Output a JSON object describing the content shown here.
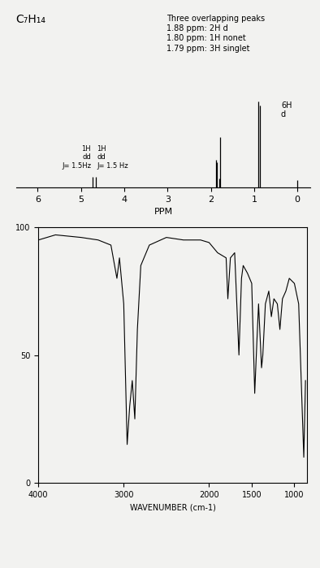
{
  "chart_data": [
    {
      "type": "stem",
      "title": "C₇H₁₄",
      "xlabel": "PPM",
      "x": [
        4.74,
        4.66,
        1.88,
        1.86,
        1.8,
        1.79,
        0.9,
        0.87,
        0.0
      ],
      "values": [
        12,
        12,
        30,
        28,
        10,
        55,
        95,
        90,
        8
      ],
      "color": "#000000",
      "xlim": [
        6.5,
        -0.3
      ],
      "xticks": [
        6,
        5,
        4,
        3,
        2,
        1,
        0
      ],
      "ylim": [
        0,
        100
      ],
      "tick_labels": "x",
      "annotations": [
        "Three overlapping peaks\n1.88 ppm: 2H d\n1.80 ppm: 1H nonet\n1.79 ppm: 3H singlet",
        "6H\nd",
        "1H\ndd\nJ= 1.5Hz",
        "1H\ndd\nJ= 1.5 Hz"
      ]
    },
    {
      "type": "line",
      "xlabel": "WAVENUMBER (cm-1)",
      "x": [
        4000,
        3800,
        3500,
        3300,
        3150,
        3080,
        3050,
        3000,
        2960,
        2930,
        2900,
        2870,
        2840,
        2800,
        2700,
        2500,
        2300,
        2100,
        2000,
        1900,
        1800,
        1780,
        1750,
        1700,
        1650,
        1620,
        1600,
        1550,
        1500,
        1465,
        1440,
        1420,
        1385,
        1370,
        1340,
        1300,
        1270,
        1240,
        1200,
        1170,
        1140,
        1100,
        1060,
        1000,
        950,
        890,
        870
      ],
      "values": [
        95,
        97,
        96,
        95,
        93,
        80,
        88,
        70,
        15,
        30,
        40,
        25,
        60,
        85,
        93,
        96,
        95,
        95,
        94,
        90,
        88,
        72,
        88,
        90,
        50,
        80,
        85,
        82,
        78,
        35,
        55,
        70,
        45,
        50,
        70,
        75,
        65,
        72,
        70,
        60,
        72,
        75,
        80,
        78,
        70,
        10,
        40
      ],
      "color": "#000000",
      "xlim": [
        4000,
        850
      ],
      "xticks": [
        4000,
        3000,
        2000,
        1500,
        1000
      ],
      "ylim": [
        0,
        100
      ],
      "yticks": [
        0,
        50,
        100
      ],
      "grid": false
    }
  ]
}
